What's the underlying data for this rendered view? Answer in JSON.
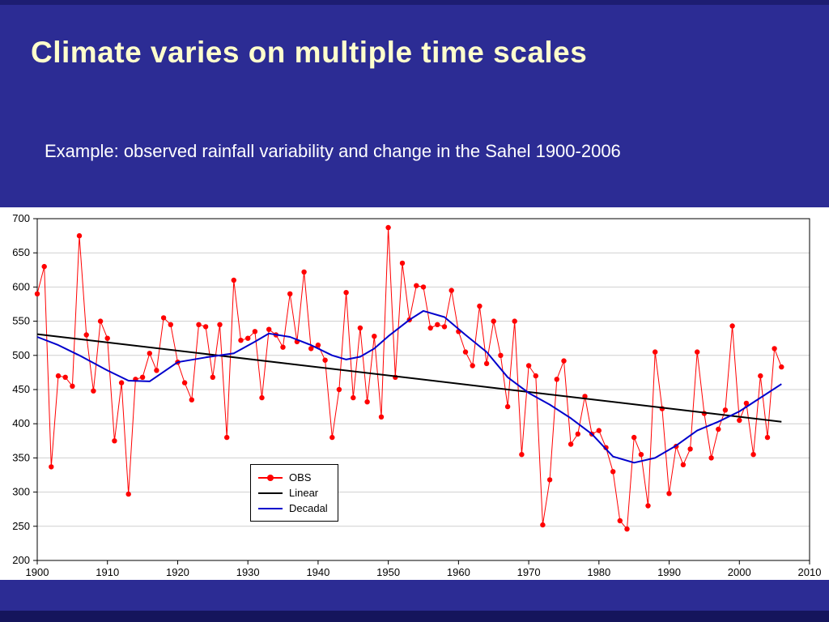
{
  "slide": {
    "title": "Climate varies on multiple time scales",
    "subtitle": "Example: observed rainfall variability  and change in the Sahel 1900-2006",
    "background_color": "#2c2c94",
    "title_color": "#ffffcc",
    "subtitle_color": "#ffffff"
  },
  "chart_data": {
    "type": "line",
    "title": "",
    "xlabel": "",
    "ylabel": "",
    "xlim": [
      1900,
      2010
    ],
    "ylim": [
      200,
      700
    ],
    "xticks": [
      1900,
      1910,
      1920,
      1930,
      1940,
      1950,
      1960,
      1970,
      1980,
      1990,
      2000,
      2010
    ],
    "yticks": [
      200,
      250,
      300,
      350,
      400,
      450,
      500,
      550,
      600,
      650,
      700
    ],
    "grid": "horizontal",
    "legend_position": "inside-left-middle",
    "series": [
      {
        "name": "OBS",
        "type": "line+marker",
        "color": "#ff0000",
        "width": 1,
        "marker": true,
        "start_year": 1900,
        "values": [
          590,
          630,
          337,
          470,
          468,
          455,
          675,
          530,
          448,
          550,
          525,
          375,
          460,
          297,
          465,
          468,
          503,
          478,
          555,
          545,
          490,
          460,
          435,
          545,
          542,
          468,
          545,
          380,
          610,
          522,
          525,
          535,
          438,
          538,
          530,
          512,
          590,
          520,
          622,
          510,
          515,
          493,
          380,
          450,
          592,
          438,
          540,
          432,
          528,
          410,
          687,
          468,
          635,
          552,
          602,
          600,
          540,
          545,
          542,
          595,
          535,
          505,
          485,
          572,
          488,
          550,
          500,
          425,
          550,
          355,
          485,
          470,
          252,
          318,
          465,
          492,
          370,
          385,
          440,
          385,
          390,
          365,
          330,
          258,
          246,
          380,
          355,
          280,
          505,
          422,
          298,
          367,
          340,
          363,
          505,
          415,
          350,
          392,
          420,
          543,
          405,
          430,
          355,
          470,
          380,
          510,
          483
        ]
      },
      {
        "name": "Linear",
        "type": "line",
        "color": "#000000",
        "width": 2,
        "marker": false,
        "x": [
          1900,
          2006
        ],
        "values": [
          531,
          403
        ]
      },
      {
        "name": "Decadal",
        "type": "line",
        "color": "#0000cc",
        "width": 2,
        "marker": false,
        "x": [
          1900,
          1903,
          1906,
          1910,
          1913,
          1916,
          1920,
          1924,
          1928,
          1931,
          1933,
          1936,
          1939,
          1942,
          1944,
          1946,
          1948,
          1950,
          1953,
          1955,
          1958,
          1961,
          1964,
          1967,
          1970,
          1973,
          1976,
          1979,
          1982,
          1985,
          1988,
          1991,
          1994,
          1997,
          2000,
          2003,
          2006
        ],
        "values": [
          527,
          515,
          500,
          478,
          463,
          462,
          490,
          497,
          503,
          520,
          532,
          527,
          515,
          500,
          494,
          498,
          510,
          528,
          552,
          565,
          556,
          530,
          505,
          468,
          445,
          428,
          408,
          385,
          352,
          343,
          350,
          368,
          390,
          403,
          418,
          438,
          458
        ]
      }
    ]
  }
}
